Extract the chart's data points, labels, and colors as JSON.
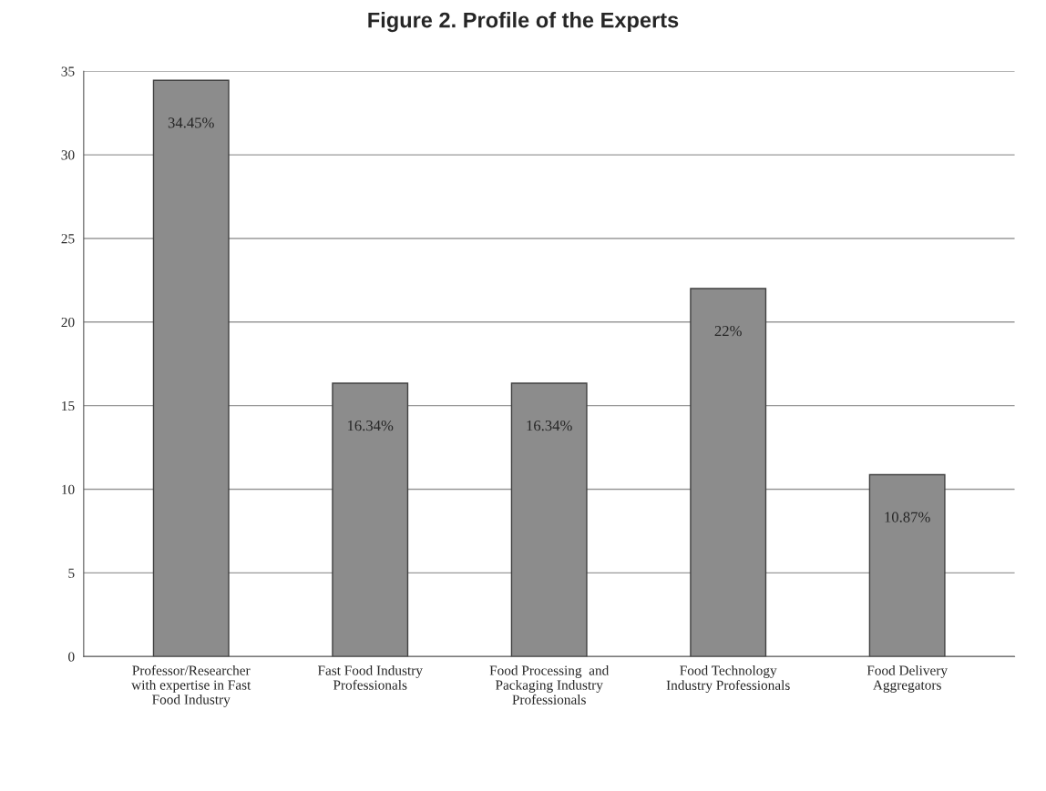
{
  "chart_data": {
    "type": "bar",
    "title": "Figure 2. Profile of the Experts",
    "categories": [
      "Professor/Researcher\nwith expertise in Fast\nFood Industry",
      "Fast Food Industry\nProfessionals",
      "Food Processing  and\nPackaging Industry\nProfessionals",
      "Food Technology\nIndustry Professionals",
      "Food Delivery\nAggregators"
    ],
    "values": [
      34.45,
      16.34,
      16.34,
      22,
      10.87
    ],
    "value_labels": [
      "34.45%",
      "16.34%",
      "16.34%",
      "22%",
      "10.87%"
    ],
    "color": "#8c8c8c",
    "ylim": [
      0,
      35
    ],
    "yticks": [
      0,
      5,
      10,
      15,
      20,
      25,
      30,
      35
    ],
    "grid": "y"
  }
}
